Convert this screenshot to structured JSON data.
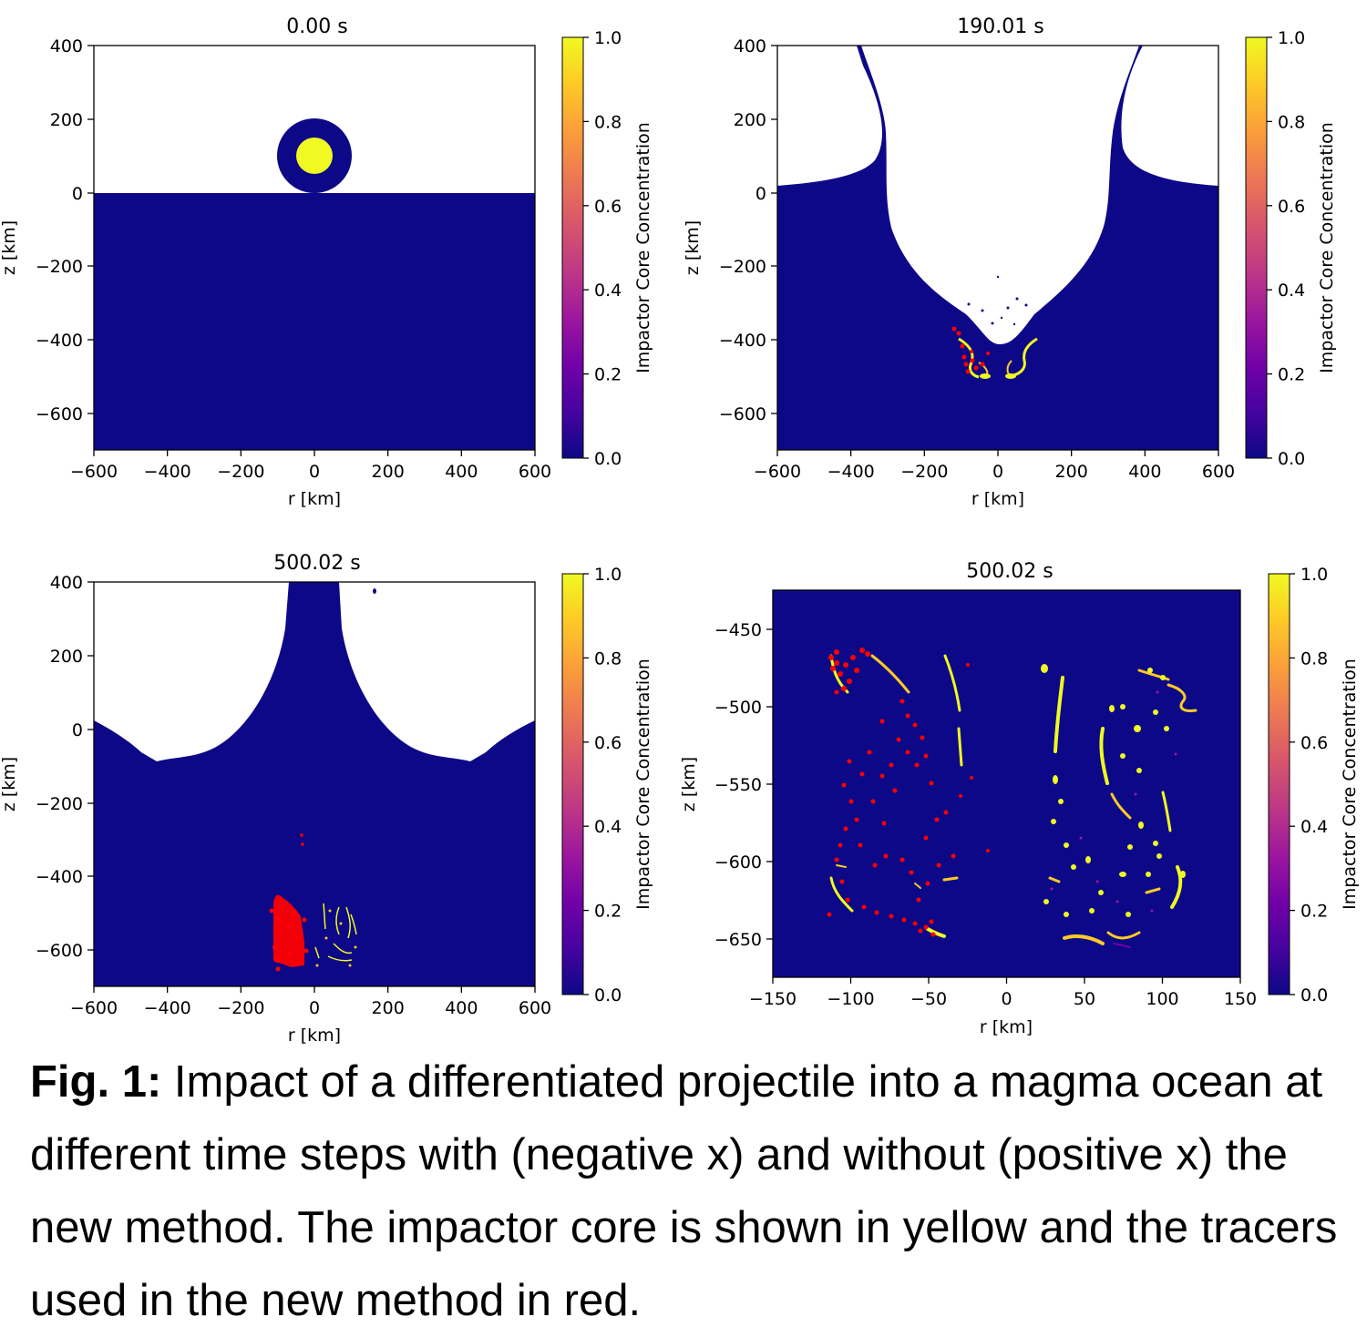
{
  "figure": {
    "colormap_colors": [
      "#0d0887",
      "#46039f",
      "#7201a8",
      "#9c179e",
      "#bd3786",
      "#d8576b",
      "#ed7953",
      "#fb9f3a",
      "#fdca26",
      "#f0f921"
    ],
    "tracer_color": "#ff0000",
    "panels": [
      {
        "title": "0.00 s",
        "xlabel": "r [km]",
        "ylabel": "z [km]",
        "colorbar_label": "Impactor Core Concentration",
        "xlim": [
          -600,
          600
        ],
        "ylim": [
          -700,
          400
        ],
        "xticks": [
          "−600",
          "−400",
          "−200",
          "0",
          "200",
          "400",
          "600"
        ],
        "yticks": [
          "400",
          "200",
          "0",
          "−200",
          "−400",
          "−600"
        ],
        "colorbar_ticks": [
          "1.0",
          "0.8",
          "0.6",
          "0.4",
          "0.2",
          "0.0"
        ]
      },
      {
        "title": "190.01 s",
        "xlabel": "r [km]",
        "ylabel": "z [km]",
        "colorbar_label": "Impactor Core Concentration",
        "xlim": [
          -600,
          600
        ],
        "ylim": [
          -700,
          400
        ],
        "xticks": [
          "−600",
          "−400",
          "−200",
          "0",
          "200",
          "400",
          "600"
        ],
        "yticks": [
          "400",
          "200",
          "0",
          "−200",
          "−400",
          "−600"
        ],
        "colorbar_ticks": [
          "1.0",
          "0.8",
          "0.6",
          "0.4",
          "0.2",
          "0.0"
        ]
      },
      {
        "title": "500.02 s",
        "xlabel": "r [km]",
        "ylabel": "z [km]",
        "colorbar_label": "Impactor Core Concentration",
        "xlim": [
          -600,
          600
        ],
        "ylim": [
          -700,
          400
        ],
        "xticks": [
          "−600",
          "−400",
          "−200",
          "0",
          "200",
          "400",
          "600"
        ],
        "yticks": [
          "400",
          "200",
          "0",
          "−200",
          "−400",
          "−600"
        ],
        "colorbar_ticks": [
          "1.0",
          "0.8",
          "0.6",
          "0.4",
          "0.2",
          "0.0"
        ]
      },
      {
        "title": "500.02 s",
        "xlabel": "r [km]",
        "ylabel": "z [km]",
        "colorbar_label": "Impactor Core Concentration",
        "xlim": [
          -150,
          150
        ],
        "ylim": [
          -675,
          -425
        ],
        "xticks": [
          "−150",
          "−100",
          "−50",
          "0",
          "50",
          "100",
          "150"
        ],
        "yticks": [
          "−450",
          "−500",
          "−550",
          "−600",
          "−650"
        ],
        "colorbar_ticks": [
          "1.0",
          "0.8",
          "0.6",
          "0.4",
          "0.2",
          "0.0"
        ]
      }
    ]
  },
  "caption": {
    "label": "Fig. 1:",
    "text": " Impact of a differentiated projectile into a magma ocean at different time steps with (negative x) and without (positive x) the new method. The impactor core is shown in yellow and the tracers used in the new method in red."
  }
}
